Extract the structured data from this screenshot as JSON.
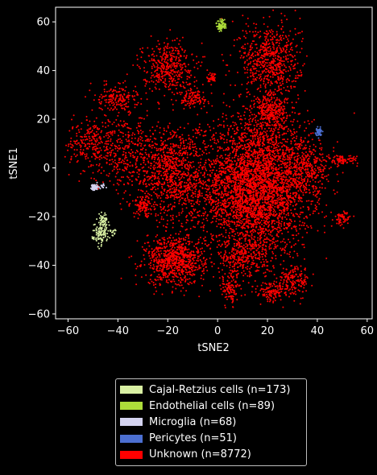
{
  "chart_data": {
    "type": "scatter",
    "title": "",
    "xlabel": "tSNE2",
    "ylabel": "tSNE1",
    "xlim": [
      -65,
      62
    ],
    "ylim": [
      -62,
      66
    ],
    "xticks": [
      -60,
      -40,
      -20,
      0,
      20,
      40,
      60
    ],
    "yticks": [
      -60,
      -40,
      -20,
      0,
      20,
      40,
      60
    ],
    "grid": false,
    "legend_position": "below",
    "series": [
      {
        "name": "Cajal-Retzius cells (n=173)",
        "color": "#d9f0a3",
        "clusters": [
          {
            "cx": -47,
            "cy": -27,
            "sx": 1.6,
            "sy": 2.2,
            "n": 110
          },
          {
            "cx": -46,
            "cy": -22,
            "sx": 1.0,
            "sy": 1.6,
            "n": 50
          },
          {
            "cx": -42,
            "cy": -26,
            "sx": 0.6,
            "sy": 0.6,
            "n": 13
          }
        ]
      },
      {
        "name": "Endothelial cells (n=89)",
        "color": "#addd3a",
        "clusters": [
          {
            "cx": 1.5,
            "cy": 58.5,
            "sx": 0.9,
            "sy": 1.2,
            "n": 89
          }
        ]
      },
      {
        "name": "Microglia (n=68)",
        "color": "#d4d3f0",
        "clusters": [
          {
            "cx": -49,
            "cy": -8,
            "sx": 0.8,
            "sy": 0.6,
            "n": 55
          },
          {
            "cx": -46,
            "cy": -7.5,
            "sx": 0.6,
            "sy": 0.4,
            "n": 13
          }
        ]
      },
      {
        "name": "Pericytes (n=51)",
        "color": "#4c6fd1",
        "clusters": [
          {
            "cx": 40.5,
            "cy": 14.5,
            "sx": 0.6,
            "sy": 1.0,
            "n": 51
          }
        ]
      },
      {
        "name": "Unknown (n=8772)",
        "color": "#ff0000",
        "clusters": [
          {
            "cx": 15,
            "cy": -8,
            "sx": 11,
            "sy": 14,
            "n": 3600
          },
          {
            "cx": -17,
            "cy": -38,
            "sx": 6,
            "sy": 5,
            "n": 800
          },
          {
            "cx": 21,
            "cy": 44,
            "sx": 6,
            "sy": 8,
            "n": 650
          },
          {
            "cx": -20,
            "cy": 42,
            "sx": 5,
            "sy": 5,
            "n": 400
          },
          {
            "cx": -18,
            "cy": -2,
            "sx": 7,
            "sy": 10,
            "n": 900
          },
          {
            "cx": -38,
            "cy": 6,
            "sx": 6,
            "sy": 8,
            "n": 350
          },
          {
            "cx": -52,
            "cy": 10,
            "sx": 4,
            "sy": 5,
            "n": 200
          },
          {
            "cx": -40,
            "cy": 29,
            "sx": 4,
            "sy": 3,
            "n": 180
          },
          {
            "cx": -10,
            "cy": 29,
            "sx": 3,
            "sy": 2,
            "n": 120
          },
          {
            "cx": 22,
            "cy": 23,
            "sx": 4,
            "sy": 4,
            "n": 300
          },
          {
            "cx": 31,
            "cy": -46,
            "sx": 3,
            "sy": 3,
            "n": 150
          },
          {
            "cx": 22,
            "cy": -51,
            "sx": 3,
            "sy": 2,
            "n": 120
          },
          {
            "cx": 5,
            "cy": -50,
            "sx": 2,
            "sy": 3,
            "n": 100
          },
          {
            "cx": 10,
            "cy": -37,
            "sx": 5,
            "sy": 4,
            "n": 250
          },
          {
            "cx": 50,
            "cy": 3,
            "sx": 3,
            "sy": 1,
            "n": 90
          },
          {
            "cx": 50,
            "cy": -21,
            "sx": 1.5,
            "sy": 1.5,
            "n": 60
          },
          {
            "cx": -30,
            "cy": -16,
            "sx": 2,
            "sy": 2,
            "n": 100
          },
          {
            "cx": -2,
            "cy": 37,
            "sx": 1,
            "sy": 1,
            "n": 40
          },
          {
            "cx": 35,
            "cy": 0,
            "sx": 5,
            "sy": 6,
            "n": 362
          }
        ]
      }
    ]
  }
}
